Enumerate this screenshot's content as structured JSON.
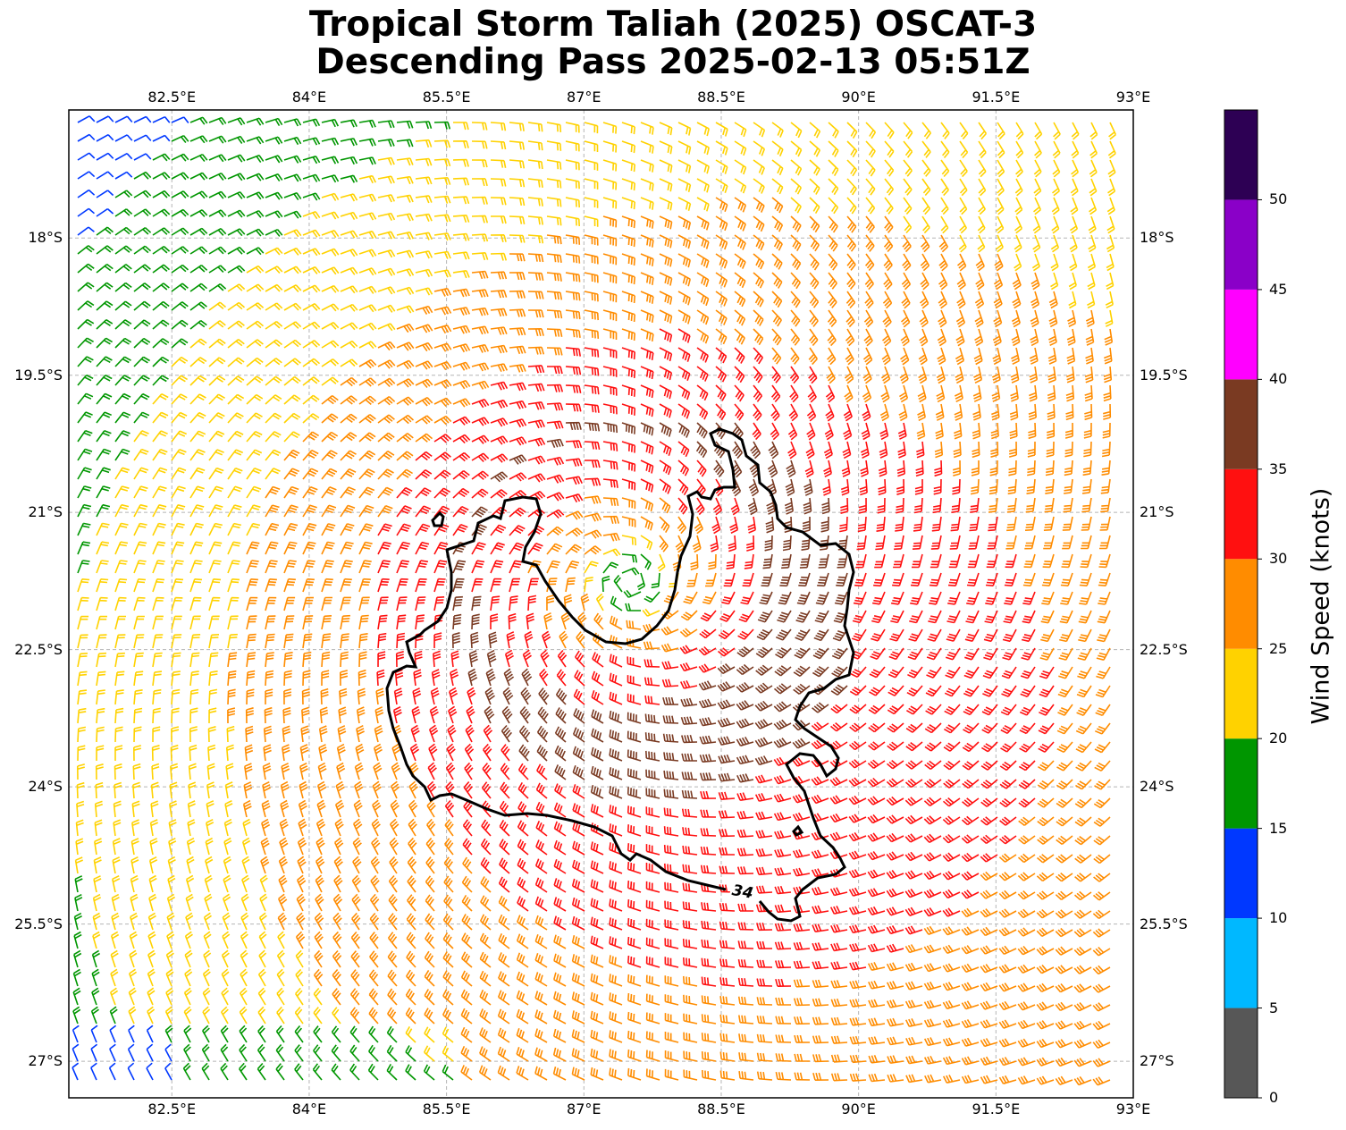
{
  "title_line1": "Tropical Storm Taliah (2025) OSCAT-3",
  "title_line2": "Descending Pass 2025-02-13 05:51Z",
  "lon_ticks": [
    "82.5°E",
    "84°E",
    "85.5°E",
    "87°E",
    "88.5°E",
    "90°E",
    "91.5°E",
    "93°E"
  ],
  "lat_ticks": [
    "18°S",
    "19.5°S",
    "21°S",
    "22.5°S",
    "24°S",
    "25.5°S",
    "27°S"
  ],
  "lon_range": [
    81.375,
    93.0
  ],
  "lat_range": [
    -16.6,
    -27.4
  ],
  "contour_label": "34",
  "storm_center": {
    "lon": 87.5,
    "lat": -21.75
  },
  "colorbar": {
    "label": "Wind Speed (knots)",
    "ticks": [
      "0",
      "5",
      "10",
      "15",
      "20",
      "25",
      "30",
      "35",
      "40",
      "45",
      "50"
    ],
    "colors": [
      "#575757",
      "#00b8ff",
      "#0038ff",
      "#009600",
      "#ffd200",
      "#ff8c00",
      "#ff1010",
      "#7a3a22",
      "#ff00ff",
      "#8a00c8",
      "#2d0054"
    ],
    "max": 55
  }
}
